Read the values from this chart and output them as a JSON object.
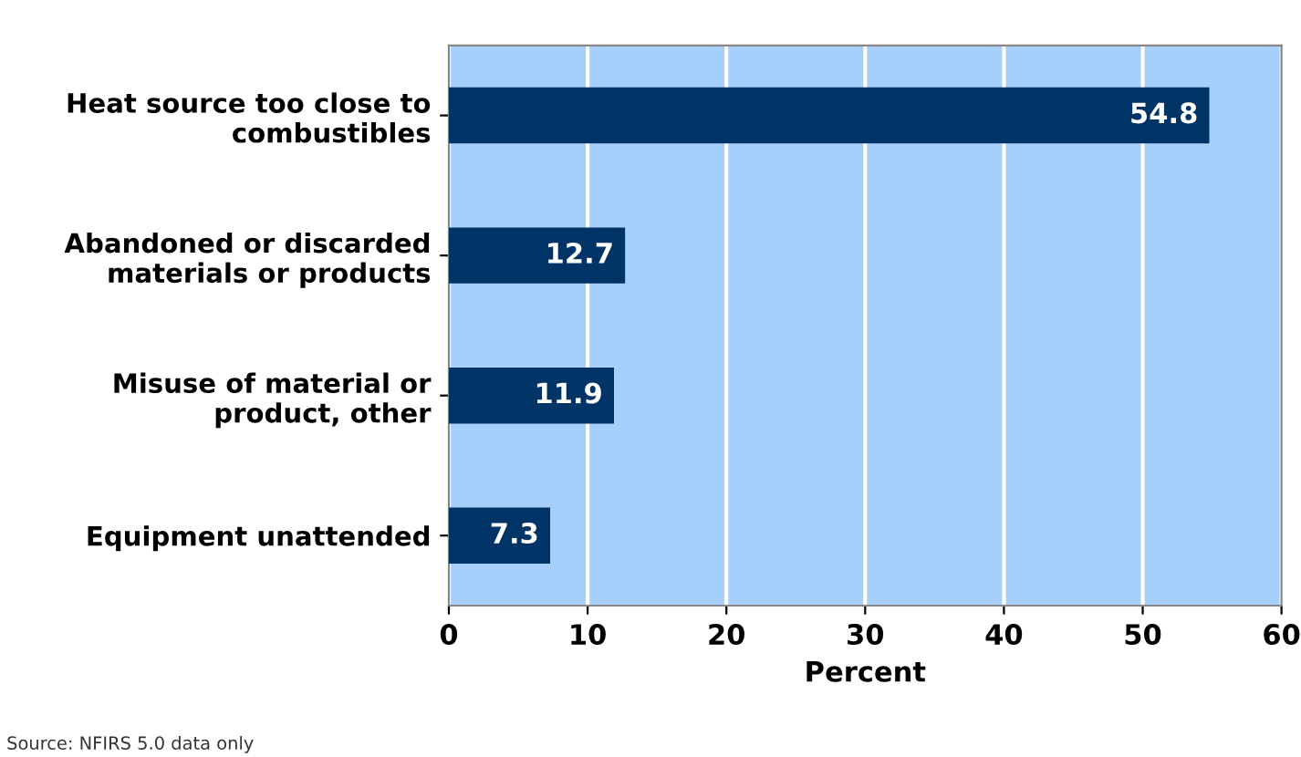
{
  "chart_data": {
    "type": "bar",
    "orientation": "horizontal",
    "xlabel": "Percent",
    "categories": [
      "Heat source too close to\ncombustibles",
      "Abandoned or discarded\nmaterials or products",
      "Misuse of material or\nproduct, other",
      "Equipment unattended"
    ],
    "values": [
      54.8,
      12.7,
      11.9,
      7.3
    ],
    "color": "#003366",
    "xlim": [
      0,
      60
    ],
    "xticks": [
      0,
      10,
      20,
      30,
      40,
      50,
      60
    ],
    "grid": "x",
    "data_labels": true,
    "annotations": [
      "Source: NFIRS 5.0 data only"
    ]
  }
}
